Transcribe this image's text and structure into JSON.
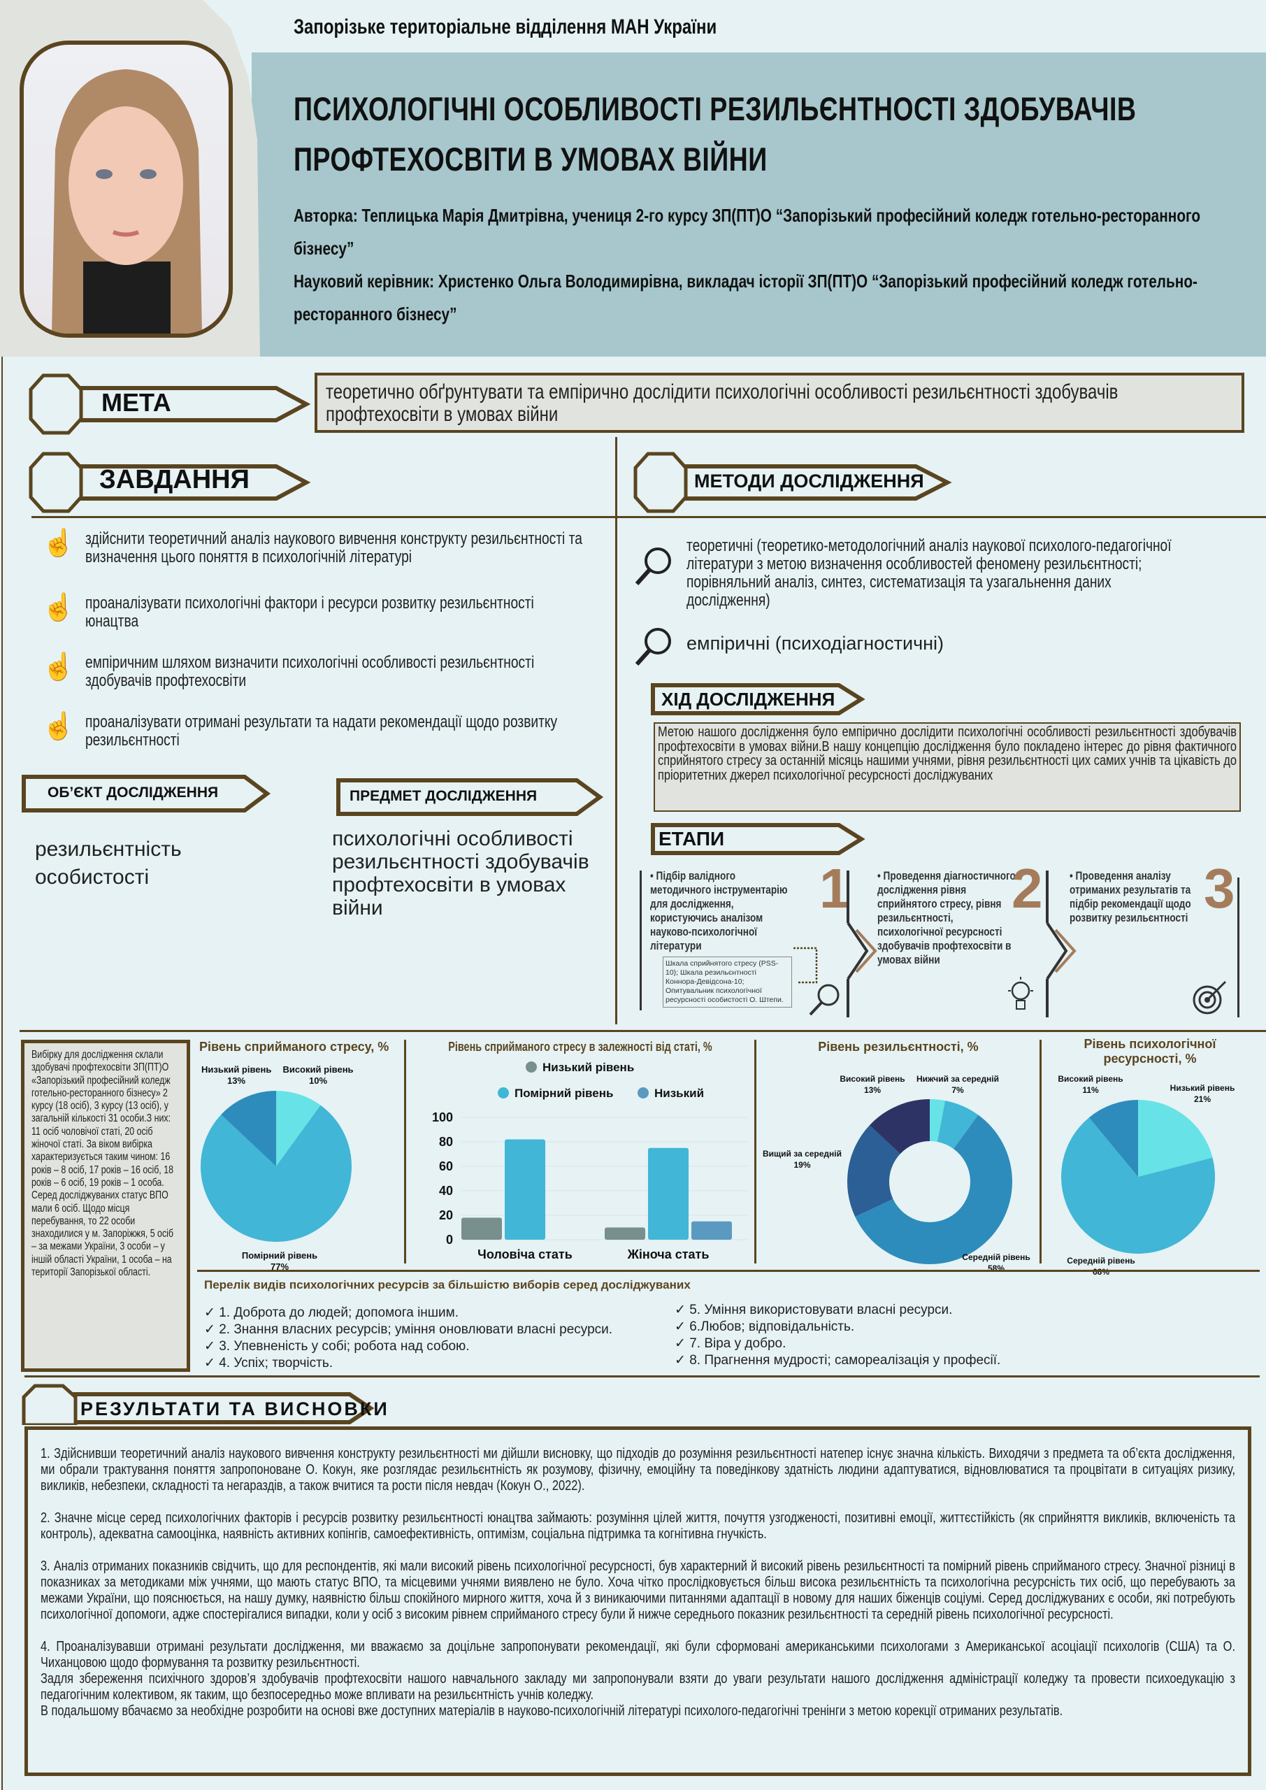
{
  "header": {
    "organization": "Запорізьке територіальне відділення МАН України",
    "title": "ПСИХОЛОГІЧНІ ОСОБЛИВОСТІ РЕЗИЛЬЄНТНОСТІ ЗДОБУВАЧІВ ПРОФТЕХОСВІТИ В УМОВАХ ВІЙНИ",
    "author": "Авторка: Теплицька Марія Дмитрівна, учениця 2-го курсу ЗП(ПТ)О “Запорізький професійний коледж готельно-ресторанного бізнесу”",
    "supervisor": "Науковий керівник: Христенко Ольга Володимирівна, викладач історії ЗП(ПТ)О “Запорізький професійний коледж готельно-ресторанного бізнесу”"
  },
  "goal": {
    "label": "МЕТА",
    "text": "теоретично обґрунтувати та емпірично дослідити психологічні особливості резильєнтності здобувачів профтехосвіти в умовах війни"
  },
  "tasks": {
    "label": "ЗАВДАННЯ",
    "items": [
      "здійснити теоретичний аналіз наукового вивчення конструкту резильєнтності та визначення цього поняття в психологічній літературі",
      "проаналізувати психологічні фактори і ресурси розвитку резильєнтності юнацтва",
      "емпіричним шляхом визначити психологічні особливості резильєнтності здобувачів профтехосвіти",
      "проаналізувати отримані результати та надати рекомендації щодо розвитку резильєнтності"
    ]
  },
  "object": {
    "label": "ОБ’ЄКТ ДОСЛІДЖЕННЯ",
    "text": "резильєнтність особистості"
  },
  "subject": {
    "label": "ПРЕДМЕТ ДОСЛІДЖЕННЯ",
    "text": "психологічні особливості резильєнтності здобувачів профтехосвіти в умовах війни"
  },
  "methods": {
    "label": "МЕТОДИ ДОСЛІДЖЕННЯ",
    "items": [
      "теоретичні (теоретико-методологічний аналіз наукової психолого-педагогічної літератури з метою визначення особливостей феномену резильєнтності; порівняльний аналіз, синтез, систематизація та узагальнення даних дослідження)",
      "емпіричні (психодіагностичні)"
    ]
  },
  "course": {
    "label": "ХІД ДОСЛІДЖЕННЯ",
    "text": "Метою нашого дослідження було емпірично дослідити психологічні особливості резильєнтності здобувачів профтехосвіти в умовах війни.В нашу концепцію дослідження було покладено інтерес до рівня фактичного сприйнятого стресу за останній місяць нашими учнями, рівня резильєнтності цих самих учнів та цікавість до пріоритетних джерел психологічної ресурсності досліджуваних"
  },
  "stages": {
    "label": "ЕТАПИ",
    "items": [
      {
        "number": "1",
        "text": "Підбір валідного методичного інструментарію для дослідження, користуючись аналізом науково-психологічної літератури",
        "note": "Шкала сприйнятого стресу (PSS-10); Шкала резильєнтності Коннора-Девідсона-10; Опитувальник психологічної ресурсності особистості О. Штепи.",
        "icon": "magnifier-icon"
      },
      {
        "number": "2",
        "text": "Проведення діагностичного дослідження рівня сприйнятого стресу, рівня резильєнтності, психологічної ресурсності здобувачів профтехосвіти в умовах війни",
        "icon": "lightbulb-icon"
      },
      {
        "number": "3",
        "text": "Проведення аналізу отриманих результатів та підбір рекомендації щодо розвитку резильєнтності",
        "icon": "target-icon"
      }
    ]
  },
  "sample": {
    "text": "Вибірку для дослідження склали здобувачі профтехосвіти ЗП(ПТ)О «Запорізький професійний коледж готельно-ресторанного бізнесу» 2 курсу (18 осіб), 3 курсу (13 осіб), у загальній кількості 31 особи.З них: 11 осіб чоловічої статі, 20 осіб жіночої статі. За віком вибірка характеризується таким чином: 16 років – 8 осіб, 17 років – 16 осіб, 18 років – 6 осіб, 19 років – 1 особа. Серед досліджуваних статус ВПО мали 6 осіб. Щодо місця перебування, то 22 особи знаходилися у м. Запоріжжя, 5 осіб – за межами України, 3 особи – у іншій області України, 1 особа – на території Запорізької області."
  },
  "chart_data": [
    {
      "type": "pie",
      "title": "Рівень сприйманого стресу, %",
      "slices": [
        {
          "label": "Високий рівень",
          "value": 10,
          "display": "10%",
          "color": "#67e2e6"
        },
        {
          "label": "Помірний рівень",
          "value": 77,
          "display": "77%",
          "color": "#41b6d6"
        },
        {
          "label": "Низький рівень",
          "value": 13,
          "display": "13%",
          "color": "#2d8cbb"
        }
      ]
    },
    {
      "type": "bar",
      "title": "Рівень сприйманого стресу в залежності від статі, %",
      "categories": [
        "Чоловіча стать",
        "Жіноча стать"
      ],
      "series": [
        {
          "name": "Низький рівень",
          "values": [
            18,
            10
          ],
          "color": "#788f8d"
        },
        {
          "name": "Помірний рівень",
          "values": [
            82,
            75
          ],
          "color": "#41b6d6"
        },
        {
          "name": "Низький",
          "values": [
            null,
            15
          ],
          "color": "#5a9ac0"
        }
      ],
      "ylim": [
        0,
        100
      ],
      "yticks": [
        "0",
        "20",
        "40",
        "60",
        "80",
        "100"
      ],
      "grid": true,
      "legend": "top"
    },
    {
      "type": "donut",
      "title": "Рівень резильєнтності, %",
      "slices": [
        {
          "label": "",
          "value": 3,
          "display": "",
          "color": "#67e2e6"
        },
        {
          "label": "Нижчий за середній",
          "value": 7,
          "display": "7%",
          "color": "#41b6d6"
        },
        {
          "label": "Середній рівень",
          "value": 58,
          "display": "58%",
          "color": "#2d8cbb"
        },
        {
          "label": "Вищий за середній",
          "value": 19,
          "display": "19%",
          "color": "#2c5f96"
        },
        {
          "label": "Високий рівень",
          "value": 13,
          "display": "13%",
          "color": "#2e3366"
        }
      ]
    },
    {
      "type": "pie",
      "title": "Рівень психологічної ресурсності, %",
      "slices": [
        {
          "label": "Низький рівень",
          "value": 21,
          "display": "21%",
          "color": "#67e2e6"
        },
        {
          "label": "Середній рівень",
          "value": 68,
          "display": "68%",
          "color": "#41b6d6"
        },
        {
          "label": "Високий рівень",
          "value": 11,
          "display": "11%",
          "color": "#2d8cbb"
        }
      ]
    }
  ],
  "resources": {
    "title": "Перелік видів психологічних ресурсів за більшістю виборів серед досліджуваних",
    "check": "✓",
    "items": [
      "1. Доброта до людей; допомога іншим.",
      "2. Знання власних ресурсів; уміння оновлювати власні ресурси.",
      "3. Упевненість у собі; робота над собою.",
      "4. Успіх; творчість.",
      "5. Уміння використовувати власні ресурси.",
      "6.Любов; відповідальність.",
      "7. Віра у добро.",
      "8. Прагнення мудрості; самореалізація у професії."
    ]
  },
  "results": {
    "label": "РЕЗУЛЬТАТИ ТА ВИСНОВКИ",
    "paragraphs": [
      "1. Здійснивши теоретичний аналіз наукового вивчення конструкту резильєнтності ми дійшли висновку, що підходів до розуміння резильєнтності натепер існує значна кількість. Виходячи з предмета та об’єкта дослідження, ми обрали трактування поняття запропоноване О. Кокун, яке розглядає резильєнтність як розумову, фізичну, емоційну та поведінкову здатність людини адаптуватися, відновлюватися та процвітати в ситуаціях ризику, викликів, небезпеки, складності та негараздів, а також вчитися та рости після невдач (Кокун О., 2022).",
      "2. Значне місце серед психологічних факторів і ресурсів розвитку резильєнтності юнацтва займають: розуміння цілей життя, почуття узгодженості, позитивні емоції, життєстійкість (як сприйняття викликів, включеність та контроль), адекватна самооцінка, наявність активних копінгів, самоефективність, оптимізм, соціальна підтримка та когнітивна гнучкість.",
      "3. Аналіз отриманих показників свідчить, що для респондентів, які мали високий рівень психологічної ресурсності, був характерний й високий рівень резильєнтності та помірний рівень сприйманого стресу. Значної різниці в показниках за методиками між учнями, що мають статус ВПО, та місцевими учнями виявлено не було. Хоча чітко прослідковується більш висока резильєнтність та психологічна ресурсність тих осіб, що перебувають за межами України, що пояснюється, на нашу думку, наявністю більш спокійного мирного життя, хоча й з виникаючими питаннями адаптації в новому для наших біженців соціумі. Серед досліджуваних є особи, які потребують психологічної допомоги, адже спостерігалися випадки, коли у осіб з високим рівнем сприйманого стресу були й нижче середнього показник резильєнтності та середній рівень психологічної ресурсності.",
      "4. Проаналізувавши отримані результати дослідження, ми вважаємо за доцільне запропонувати рекомендації, які були сформовані американськими психологами з Американської асоціації психологів (США) та О. Чиханцовою щодо формування та розвитку резильєнтності.\nЗадля збереження психічного здоров’я здобувачів профтехосвіти нашого навчального закладу ми запропонували взяти до уваги результати нашого дослідження адміністрації коледжу та провести психоедукацію з педагогічним колективом, як таким, що безпосередньо може впливати на резильєнтність учнів коледжу.\nВ подальшому вбачаємо за необхідне розробити на основі вже доступних матеріалів в науково-психологічній літературі психолого-педагогічні тренінги з метою корекції отриманих результатів."
    ]
  }
}
